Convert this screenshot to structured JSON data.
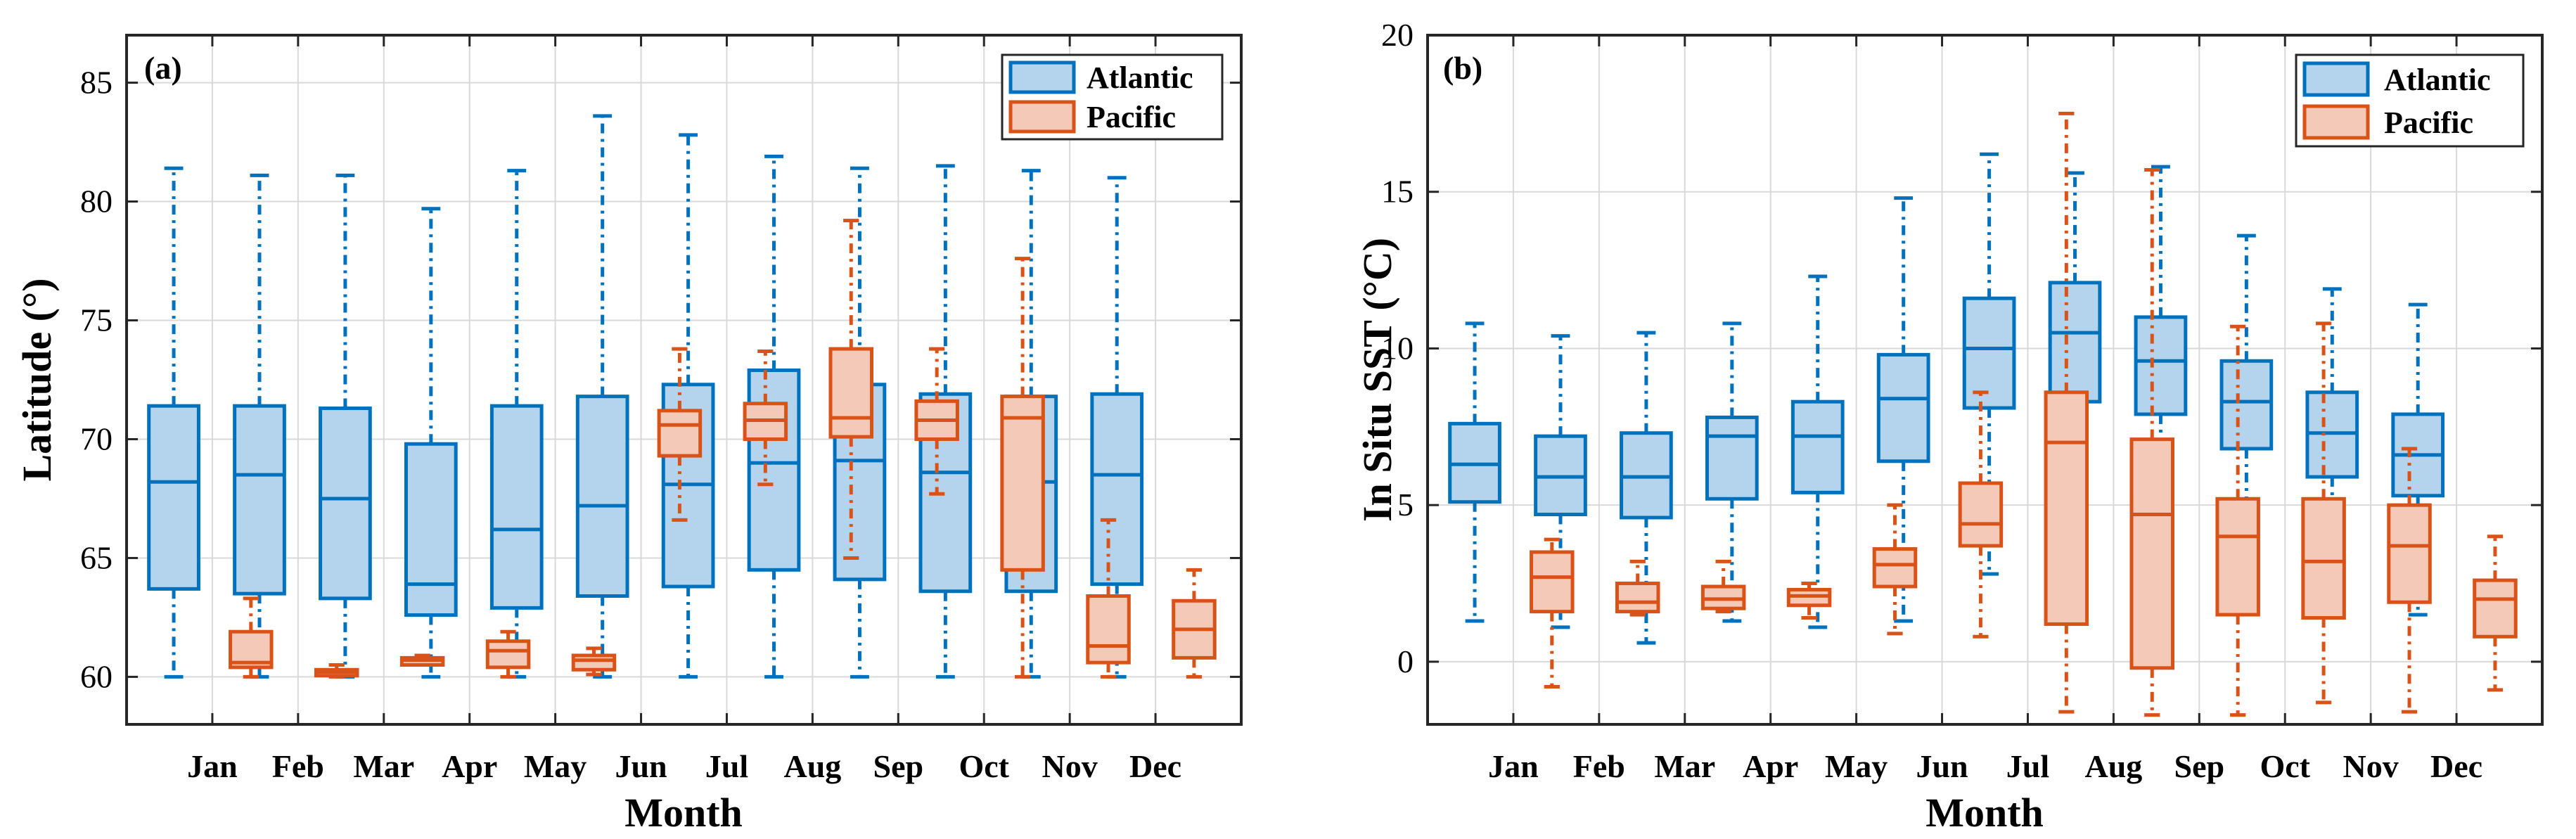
{
  "colors": {
    "atlantic_stroke": "#0072BD",
    "atlantic_fill": "#B3D4EC",
    "pacific_stroke": "#D95319",
    "pacific_fill": "#F5C9B7",
    "grid": "#d9d9d9",
    "axis": "#262626"
  },
  "chart_data": [
    {
      "type": "boxplot",
      "panel_label": "(a)",
      "xlabel": "Month",
      "ylabel": "Latitude (°)",
      "ylim": [
        58,
        87
      ],
      "yticks": [
        60,
        65,
        70,
        75,
        80,
        85
      ],
      "categories": [
        "Jan",
        "Feb",
        "Mar",
        "Apr",
        "May",
        "Jun",
        "Jul",
        "Aug",
        "Sep",
        "Oct",
        "Nov",
        "Dec"
      ],
      "legend": {
        "position": "top-right",
        "entries": [
          "Atlantic",
          "Pacific"
        ]
      },
      "series": [
        {
          "name": "Atlantic",
          "color_key": "atlantic",
          "boxes": [
            {
              "min": 60.0,
              "q1": 63.7,
              "median": 68.2,
              "q3": 71.4,
              "max": 81.4
            },
            {
              "min": 60.0,
              "q1": 63.5,
              "median": 68.5,
              "q3": 71.4,
              "max": 81.1
            },
            {
              "min": 60.0,
              "q1": 63.3,
              "median": 67.5,
              "q3": 71.3,
              "max": 81.1
            },
            {
              "min": 60.0,
              "q1": 62.6,
              "median": 63.9,
              "q3": 69.8,
              "max": 79.7
            },
            {
              "min": 60.0,
              "q1": 62.9,
              "median": 66.2,
              "q3": 71.4,
              "max": 81.3
            },
            {
              "min": 60.0,
              "q1": 63.4,
              "median": 67.2,
              "q3": 71.8,
              "max": 83.6
            },
            {
              "min": 60.0,
              "q1": 63.8,
              "median": 68.1,
              "q3": 72.3,
              "max": 82.8
            },
            {
              "min": 60.0,
              "q1": 64.5,
              "median": 69.0,
              "q3": 72.9,
              "max": 81.9
            },
            {
              "min": 60.0,
              "q1": 64.1,
              "median": 69.1,
              "q3": 72.3,
              "max": 81.4
            },
            {
              "min": 60.0,
              "q1": 63.6,
              "median": 68.6,
              "q3": 71.9,
              "max": 81.5
            },
            {
              "min": 60.0,
              "q1": 63.6,
              "median": 68.2,
              "q3": 71.8,
              "max": 81.3
            },
            {
              "min": 60.0,
              "q1": 63.9,
              "median": 68.5,
              "q3": 71.9,
              "max": 81.0
            }
          ]
        },
        {
          "name": "Pacific",
          "color_key": "pacific",
          "boxes": [
            {
              "min": 60.0,
              "q1": 60.4,
              "median": 60.6,
              "q3": 61.9,
              "max": 63.3
            },
            {
              "min": 60.0,
              "q1": 60.05,
              "median": 60.2,
              "q3": 60.3,
              "max": 60.5
            },
            {
              "min": 60.5,
              "q1": 60.5,
              "median": 60.7,
              "q3": 60.8,
              "max": 60.9
            },
            {
              "min": 60.0,
              "q1": 60.4,
              "median": 61.1,
              "q3": 61.5,
              "max": 61.9
            },
            {
              "min": 60.1,
              "q1": 60.3,
              "median": 60.7,
              "q3": 60.9,
              "max": 61.2
            },
            {
              "min": 66.6,
              "q1": 69.3,
              "median": 70.6,
              "q3": 71.2,
              "max": 73.8
            },
            {
              "min": 68.1,
              "q1": 70.0,
              "median": 70.8,
              "q3": 71.5,
              "max": 73.7
            },
            {
              "min": 65.0,
              "q1": 70.1,
              "median": 70.9,
              "q3": 73.8,
              "max": 79.2
            },
            {
              "min": 67.7,
              "q1": 70.0,
              "median": 70.8,
              "q3": 71.6,
              "max": 73.8
            },
            {
              "min": 60.0,
              "q1": 64.5,
              "median": 70.9,
              "q3": 71.8,
              "max": 77.6
            },
            {
              "min": 60.0,
              "q1": 60.6,
              "median": 61.3,
              "q3": 63.4,
              "max": 66.6
            },
            {
              "min": 60.0,
              "q1": 60.8,
              "median": 62.0,
              "q3": 63.2,
              "max": 64.5
            }
          ]
        }
      ]
    },
    {
      "type": "boxplot",
      "panel_label": "(b)",
      "xlabel": "Month",
      "ylabel": "In Situ SST (°C)",
      "ylim": [
        -2,
        20
      ],
      "yticks": [
        0,
        5,
        10,
        15,
        20
      ],
      "categories": [
        "Jan",
        "Feb",
        "Mar",
        "Apr",
        "May",
        "Jun",
        "Jul",
        "Aug",
        "Sep",
        "Oct",
        "Nov",
        "Dec"
      ],
      "legend": {
        "position": "top-right",
        "entries": [
          "Atlantic",
          "Pacific"
        ]
      },
      "series": [
        {
          "name": "Atlantic",
          "color_key": "atlantic",
          "boxes": [
            {
              "min": 1.3,
              "q1": 5.1,
              "median": 6.3,
              "q3": 7.6,
              "max": 10.8
            },
            {
              "min": 1.1,
              "q1": 4.7,
              "median": 5.9,
              "q3": 7.2,
              "max": 10.4
            },
            {
              "min": 0.6,
              "q1": 4.6,
              "median": 5.9,
              "q3": 7.3,
              "max": 10.5
            },
            {
              "min": 1.3,
              "q1": 5.2,
              "median": 7.2,
              "q3": 7.8,
              "max": 10.8
            },
            {
              "min": 1.1,
              "q1": 5.4,
              "median": 7.2,
              "q3": 8.3,
              "max": 12.3
            },
            {
              "min": 1.3,
              "q1": 6.4,
              "median": 8.4,
              "q3": 9.8,
              "max": 14.8
            },
            {
              "min": 2.8,
              "q1": 8.1,
              "median": 10.0,
              "q3": 11.6,
              "max": 16.2
            },
            {
              "min": 2.7,
              "q1": 8.3,
              "median": 10.5,
              "q3": 12.1,
              "max": 15.6
            },
            {
              "min": 3.0,
              "q1": 7.9,
              "median": 9.6,
              "q3": 11.0,
              "max": 15.8
            },
            {
              "min": 2.6,
              "q1": 6.8,
              "median": 8.3,
              "q3": 9.6,
              "max": 13.6
            },
            {
              "min": 1.6,
              "q1": 5.9,
              "median": 7.3,
              "q3": 8.6,
              "max": 11.9
            },
            {
              "min": 1.5,
              "q1": 5.3,
              "median": 6.6,
              "q3": 7.9,
              "max": 11.4
            }
          ]
        },
        {
          "name": "Pacific",
          "color_key": "pacific",
          "boxes": [
            {
              "min": -0.8,
              "q1": 1.6,
              "median": 2.7,
              "q3": 3.5,
              "max": 3.9
            },
            {
              "min": 1.5,
              "q1": 1.6,
              "median": 1.9,
              "q3": 2.5,
              "max": 3.2
            },
            {
              "min": 1.6,
              "q1": 1.7,
              "median": 2.0,
              "q3": 2.4,
              "max": 3.2
            },
            {
              "min": 1.4,
              "q1": 1.8,
              "median": 2.1,
              "q3": 2.3,
              "max": 2.5
            },
            {
              "min": 0.9,
              "q1": 2.4,
              "median": 3.1,
              "q3": 3.6,
              "max": 5.0
            },
            {
              "min": 0.8,
              "q1": 3.7,
              "median": 4.4,
              "q3": 5.7,
              "max": 8.6
            },
            {
              "min": -1.6,
              "q1": 1.2,
              "median": 7.0,
              "q3": 8.6,
              "max": 17.5
            },
            {
              "min": -1.7,
              "q1": -0.2,
              "median": 4.7,
              "q3": 7.1,
              "max": 15.7
            },
            {
              "min": -1.7,
              "q1": 1.5,
              "median": 4.0,
              "q3": 5.2,
              "max": 10.7
            },
            {
              "min": -1.3,
              "q1": 1.4,
              "median": 3.2,
              "q3": 5.2,
              "max": 10.8
            },
            {
              "min": -1.6,
              "q1": 1.9,
              "median": 3.7,
              "q3": 5.0,
              "max": 6.8
            },
            {
              "min": -0.9,
              "q1": 0.8,
              "median": 2.0,
              "q3": 2.6,
              "max": 4.0
            }
          ]
        }
      ]
    }
  ]
}
